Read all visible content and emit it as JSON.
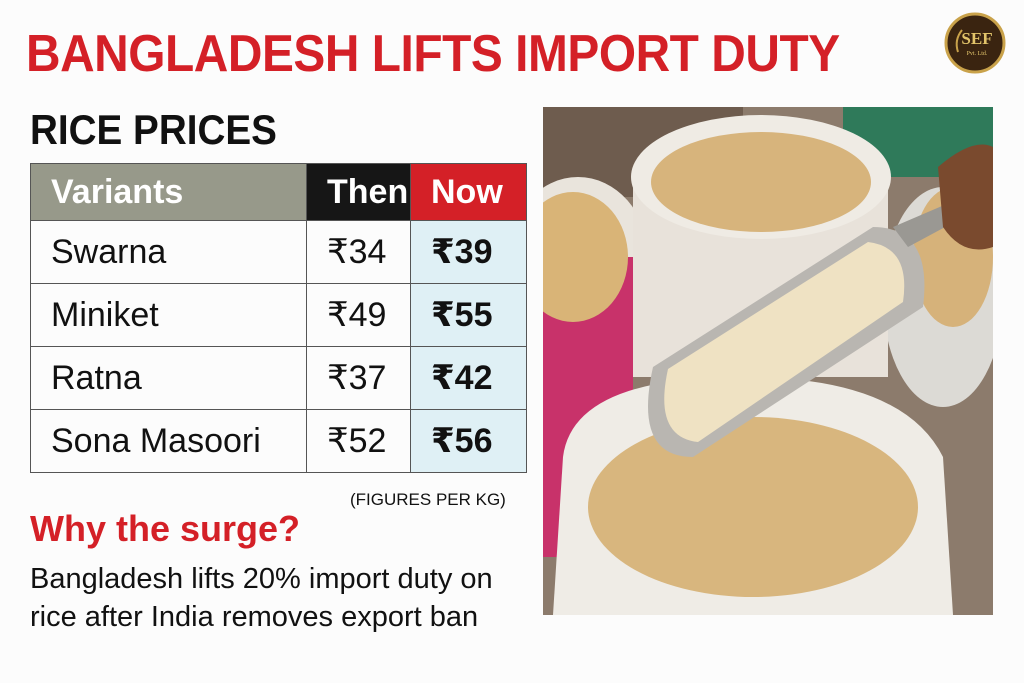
{
  "header": {
    "title": "BANGLADESH LIFTS IMPORT DUTY",
    "logo": {
      "name": "SEF",
      "subtitle": "Pvt. Ltd."
    }
  },
  "section_title": "RICE PRICES",
  "table": {
    "columns": [
      "Variants",
      "Then",
      "Now"
    ],
    "rows": [
      [
        "Swarna",
        "₹34",
        "₹39"
      ],
      [
        "Miniket",
        "₹49",
        "₹55"
      ],
      [
        "Ratna",
        "₹37",
        "₹42"
      ],
      [
        "Sona Masoori",
        "₹52",
        "₹56"
      ]
    ]
  },
  "note": "(FIGURES PER KG)",
  "explanation": {
    "heading": "Why the surge?",
    "body": "Bangladesh lifts 20% import duty on rice after India removes export ban"
  }
}
